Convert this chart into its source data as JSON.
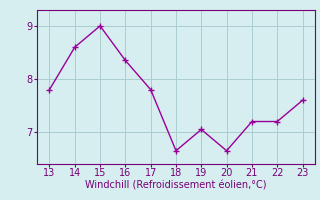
{
  "x": [
    13,
    14,
    15,
    16,
    17,
    18,
    19,
    20,
    21,
    22,
    23
  ],
  "y": [
    7.8,
    8.6,
    9.0,
    8.35,
    7.8,
    6.65,
    7.05,
    6.65,
    7.2,
    7.2,
    7.6
  ],
  "line_color": "#990099",
  "marker": "+",
  "marker_size": 4,
  "marker_linewidth": 1.0,
  "line_width": 1.0,
  "xlabel": "Windchill (Refroidissement éolien,°C)",
  "xlim": [
    12.5,
    23.5
  ],
  "ylim": [
    6.4,
    9.3
  ],
  "yticks": [
    7,
    8,
    9
  ],
  "xticks": [
    13,
    14,
    15,
    16,
    17,
    18,
    19,
    20,
    21,
    22,
    23
  ],
  "grid_color": "#aacccc",
  "bg_color": "#d6eef0",
  "tick_color": "#770077",
  "label_color": "#770077",
  "label_fontsize": 7,
  "tick_fontsize": 7,
  "spine_color": "#770077"
}
